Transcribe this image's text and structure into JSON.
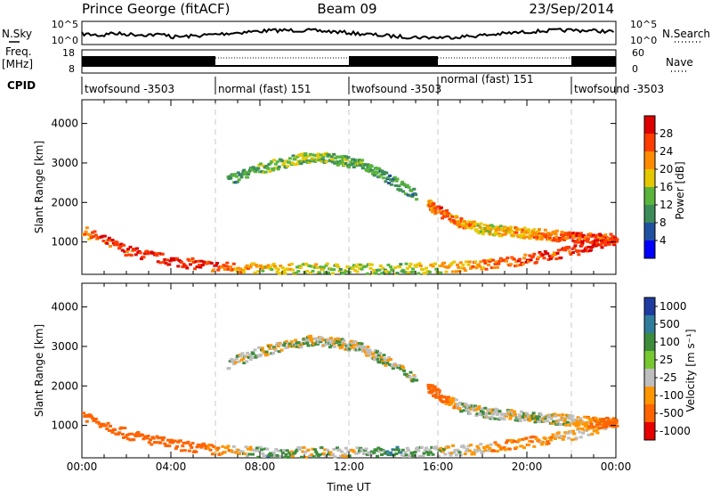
{
  "header": {
    "station": "Prince George (fitACF)",
    "beam": "Beam 09",
    "date": "23/Sep/2014"
  },
  "summary_panel": {
    "nsky_label": "N.Sky",
    "nsearch_label": "N.Search",
    "noise_ticks_left": [
      "10^5",
      "10^0"
    ],
    "noise_ticks_right": [
      "10^5",
      "10^0"
    ],
    "freq_label": "Freq.",
    "freq_unit": "[MHz]",
    "freq_ticks": [
      "18",
      "8"
    ],
    "nave_label": "Nave",
    "nave_ticks": [
      "60",
      "0"
    ],
    "cpid_label": "CPID",
    "cpid_segments": [
      {
        "label": "twofsound -3503",
        "start": 0,
        "end": 6
      },
      {
        "label": "normal (fast) 151",
        "start": 6,
        "end": 12
      },
      {
        "label": "twofsound -3503",
        "start": 12,
        "end": 16
      },
      {
        "label": "normal (fast) 151",
        "start": 16,
        "end": 22
      },
      {
        "label": "twofsound -3503",
        "start": 22,
        "end": 24
      }
    ]
  },
  "colors": {
    "power_scale": [
      "#0000ff",
      "#2050a0",
      "#3c8c5a",
      "#5ab43c",
      "#e6c800",
      "#ff8c00",
      "#ff3c00",
      "#dc0000"
    ],
    "velocity_scale": [
      "#1e3ca0",
      "#2f7d9b",
      "#3c8c3c",
      "#78c832",
      "#bebebe",
      "#ff9600",
      "#ff6400",
      "#e60000"
    ],
    "marker_line": "#c8c8c8"
  },
  "chart_data": [
    {
      "type": "heatmap",
      "title": "",
      "xlabel": "",
      "ylabel": "Slant Range [km]",
      "xlim": [
        0,
        24
      ],
      "ylim": [
        180,
        4600
      ],
      "y_ticks": [
        "1000",
        "2000",
        "3000",
        "4000"
      ],
      "colorbar": {
        "label": "Power [dB]",
        "ticks": [
          "28",
          "24",
          "20",
          "16",
          "12",
          "8",
          "4"
        ],
        "range": [
          0,
          30
        ]
      },
      "features": [
        {
          "name": "near-range band",
          "t": [
            0,
            2,
            4,
            6,
            8,
            10,
            12,
            14,
            16,
            18,
            20,
            22,
            24
          ],
          "range": [
            1300,
            800,
            550,
            400,
            350,
            350,
            350,
            350,
            380,
            450,
            600,
            800,
            1100
          ],
          "power": [
            22,
            26,
            28,
            24,
            18,
            16,
            14,
            14,
            18,
            22,
            24,
            26,
            28
          ]
        },
        {
          "name": "far-range arc",
          "t": [
            6.5,
            8,
            9.5,
            10.5,
            11.5,
            12.5,
            13.5,
            15
          ],
          "range": [
            2600,
            2900,
            3100,
            3200,
            3100,
            3000,
            2700,
            2200
          ],
          "power": [
            10,
            12,
            14,
            14,
            12,
            12,
            10,
            10
          ]
        },
        {
          "name": "late echo band",
          "t": [
            15.5,
            16,
            17,
            18,
            19,
            20,
            21,
            22,
            23,
            24
          ],
          "range": [
            2000,
            1800,
            1500,
            1350,
            1300,
            1250,
            1200,
            1150,
            1100,
            1100
          ],
          "power": [
            20,
            24,
            20,
            18,
            18,
            20,
            22,
            24,
            24,
            26
          ]
        }
      ]
    },
    {
      "type": "heatmap",
      "title": "",
      "xlabel": "Time UT",
      "ylabel": "Slant Range [km]",
      "xlim": [
        0,
        24
      ],
      "ylim": [
        180,
        4600
      ],
      "x_ticks": [
        "00:00",
        "04:00",
        "08:00",
        "12:00",
        "16:00",
        "20:00",
        "00:00"
      ],
      "y_ticks": [
        "1000",
        "2000",
        "3000",
        "4000"
      ],
      "colorbar": {
        "label": "Velocity [m s⁻¹]",
        "ticks": [
          "1000",
          "500",
          "100",
          "25",
          "-25",
          "-100",
          "-500",
          "-1000"
        ],
        "range": [
          -1000,
          1000
        ]
      },
      "features": [
        {
          "name": "near-range band",
          "t": [
            0,
            2,
            4,
            6,
            8,
            10,
            12,
            14,
            16,
            18,
            20,
            22,
            24
          ],
          "range": [
            1300,
            800,
            550,
            400,
            350,
            350,
            350,
            350,
            380,
            450,
            600,
            800,
            1100
          ],
          "velocity": [
            -300,
            -350,
            -200,
            -100,
            50,
            0,
            0,
            80,
            0,
            -50,
            -100,
            -25,
            -25
          ]
        },
        {
          "name": "far-range arc",
          "t": [
            6.5,
            8,
            9.5,
            10.5,
            11.5,
            12.5,
            13.5,
            15
          ],
          "range": [
            2600,
            2900,
            3100,
            3200,
            3100,
            3000,
            2700,
            2200
          ],
          "velocity": [
            0,
            0,
            0,
            0,
            0,
            0,
            0,
            0
          ]
        },
        {
          "name": "late echo band",
          "t": [
            15.5,
            16,
            17,
            18,
            19,
            20,
            21,
            22,
            23,
            24
          ],
          "range": [
            2000,
            1800,
            1500,
            1350,
            1300,
            1250,
            1200,
            1150,
            1100,
            1100
          ],
          "velocity": [
            -300,
            -200,
            0,
            0,
            0,
            0,
            0,
            -25,
            -100,
            -200
          ]
        }
      ]
    }
  ]
}
